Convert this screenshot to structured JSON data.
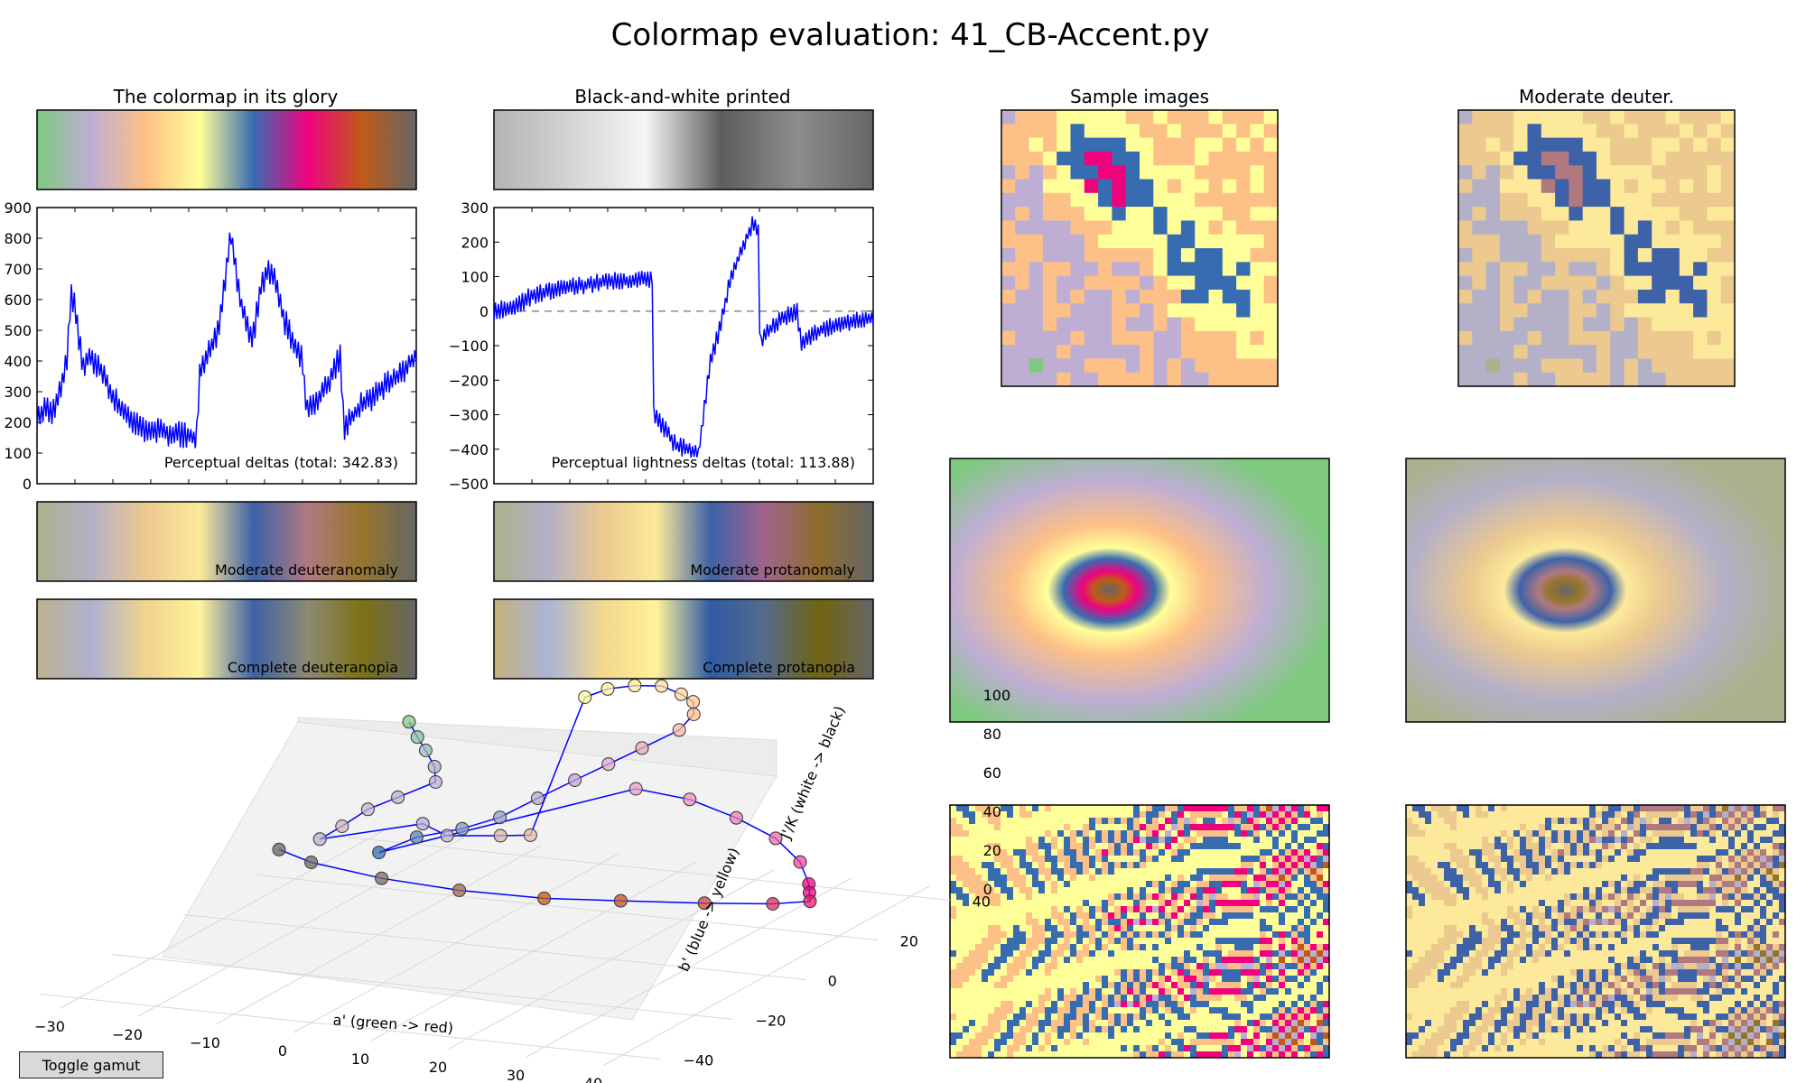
{
  "figure_title": "Colormap evaluation: 41_CB-Accent.py",
  "toggle_gamut_label": "Toggle gamut",
  "colors": {
    "line": "#0000ff",
    "accent_stops": [
      "#7fc97f",
      "#beaed4",
      "#fdc086",
      "#ffff99",
      "#386cb0",
      "#f0027f",
      "#bf5b17",
      "#666666"
    ],
    "grey_stops": [
      "#b3b3b3",
      "#d4d4d4",
      "#f5f5f5",
      "#5e5e5e",
      "#8c8c8c",
      "#666666"
    ],
    "deuteranomaly_stops": [
      "#a9b28c",
      "#b4b0c8",
      "#ecc98f",
      "#fcea9a",
      "#3e62a8",
      "#b07980",
      "#95752c",
      "#666666"
    ],
    "protanomaly_stops": [
      "#a9b28c",
      "#b4b0c8",
      "#ecc98f",
      "#fcea9a",
      "#3e62a8",
      "#a0648c",
      "#8d6c2c",
      "#666666"
    ],
    "deuteranopia_stops": [
      "#bdb38d",
      "#aeb1d0",
      "#f0d38e",
      "#fff29a",
      "#3f62a6",
      "#8c8a72",
      "#7d7114",
      "#666666"
    ],
    "protanopia_stops": [
      "#c4b27c",
      "#aab4d6",
      "#f2d78c",
      "#fff29a",
      "#2f5aa4",
      "#546b8c",
      "#6f640e",
      "#666666"
    ]
  },
  "labels": {
    "colormap_glory": "The colormap in its glory",
    "bw_printed": "Black-and-white printed",
    "sample_images": "Sample images",
    "moderate_deuter": "Moderate deuter.",
    "moderate_deuteranomaly": "Moderate deuteranomaly",
    "moderate_protanomaly": "Moderate protanomaly",
    "complete_deuteranopia": "Complete deuteranopia",
    "complete_protanopia": "Complete protanopia",
    "axis_a": "a' (green -> red)",
    "axis_b": "b' (blue -> yellow)",
    "axis_j": "J'/K (white -> black)"
  },
  "chart_data": [
    {
      "type": "line",
      "annotation": "Perceptual deltas (total: 342.83)",
      "ylim": [
        0,
        900
      ],
      "yticks": [
        0,
        100,
        200,
        300,
        400,
        500,
        600,
        700,
        800,
        900
      ],
      "xlim": [
        0,
        1
      ],
      "profile": [
        [
          0,
          200
        ],
        [
          0.02,
          250
        ],
        [
          0.04,
          230
        ],
        [
          0.06,
          300
        ],
        [
          0.08,
          420
        ],
        [
          0.09,
          620
        ],
        [
          0.1,
          580
        ],
        [
          0.12,
          380
        ],
        [
          0.14,
          420
        ],
        [
          0.16,
          380
        ],
        [
          0.18,
          350
        ],
        [
          0.2,
          280
        ],
        [
          0.24,
          220
        ],
        [
          0.28,
          180
        ],
        [
          0.33,
          170
        ],
        [
          0.38,
          160
        ],
        [
          0.42,
          150
        ],
        [
          0.43,
          380
        ],
        [
          0.46,
          440
        ],
        [
          0.48,
          500
        ],
        [
          0.5,
          700
        ],
        [
          0.51,
          820
        ],
        [
          0.53,
          640
        ],
        [
          0.55,
          520
        ],
        [
          0.57,
          480
        ],
        [
          0.59,
          640
        ],
        [
          0.61,
          700
        ],
        [
          0.63,
          660
        ],
        [
          0.65,
          540
        ],
        [
          0.67,
          480
        ],
        [
          0.7,
          400
        ],
        [
          0.71,
          250
        ],
        [
          0.73,
          260
        ],
        [
          0.77,
          330
        ],
        [
          0.8,
          420
        ],
        [
          0.81,
          180
        ],
        [
          0.85,
          250
        ],
        [
          0.9,
          300
        ],
        [
          0.95,
          350
        ],
        [
          1,
          420
        ]
      ]
    },
    {
      "type": "line",
      "annotation": "Perceptual lightness deltas (total: 113.88)",
      "ylim": [
        -500,
        300
      ],
      "yticks": [
        -500,
        -400,
        -300,
        -200,
        -100,
        0,
        100,
        200,
        300
      ],
      "xlim": [
        0,
        1
      ],
      "reference_line": 0,
      "profile": [
        [
          0,
          0
        ],
        [
          0.05,
          10
        ],
        [
          0.1,
          45
        ],
        [
          0.2,
          70
        ],
        [
          0.3,
          85
        ],
        [
          0.38,
          90
        ],
        [
          0.42,
          90
        ],
        [
          0.421,
          -300
        ],
        [
          0.45,
          -340
        ],
        [
          0.48,
          -390
        ],
        [
          0.54,
          -410
        ],
        [
          0.55,
          -320
        ],
        [
          0.57,
          -150
        ],
        [
          0.6,
          -30
        ],
        [
          0.62,
          80
        ],
        [
          0.65,
          170
        ],
        [
          0.68,
          250
        ],
        [
          0.7,
          230
        ],
        [
          0.701,
          -110
        ],
        [
          0.72,
          -60
        ],
        [
          0.76,
          -20
        ],
        [
          0.8,
          0
        ],
        [
          0.81,
          -100
        ],
        [
          0.85,
          -60
        ],
        [
          0.9,
          -40
        ],
        [
          1,
          -20
        ]
      ]
    },
    {
      "type": "scatter",
      "subtype": "3d",
      "xlabel": "a' (green -> red)",
      "ylabel": "b' (blue -> yellow)",
      "zlabel": "J'/K (white -> black)",
      "xticks": [
        -30,
        -20,
        -10,
        0,
        10,
        20,
        30,
        40
      ],
      "yticks": [
        -40,
        -20,
        0,
        20,
        40
      ],
      "zticks": [
        0,
        20,
        40,
        60,
        80,
        100
      ],
      "points": [
        [
          -20,
          30,
          75,
          "#7fc97f"
        ],
        [
          -18,
          28,
          70,
          "#8fc49a"
        ],
        [
          -16,
          26,
          66,
          "#9fbcae"
        ],
        [
          -13,
          22,
          63,
          "#aeb4c3"
        ],
        [
          -11,
          18,
          60,
          "#beaed4"
        ],
        [
          -14,
          14,
          55,
          "#c2b2cf"
        ],
        [
          -16,
          10,
          52,
          "#c8b4c8"
        ],
        [
          -17,
          5,
          48,
          "#cfb8b8"
        ],
        [
          -18,
          1,
          45,
          "#beaed4"
        ],
        [
          -8,
          8,
          50,
          "#beaed4"
        ],
        [
          -3,
          4,
          50,
          "#c4b0cc"
        ],
        [
          2,
          8,
          48,
          "#d8b8b0"
        ],
        [
          4,
          12,
          45,
          "#e6bca0"
        ],
        [
          -2,
          40,
          85,
          "#ffff99"
        ],
        [
          0,
          42,
          88,
          "#fff39a"
        ],
        [
          3,
          43,
          90,
          "#fee99a"
        ],
        [
          6,
          44,
          90,
          "#fede97"
        ],
        [
          9,
          43,
          88,
          "#fed493"
        ],
        [
          11,
          42,
          86,
          "#fdca8e"
        ],
        [
          12,
          40,
          82,
          "#fdc086"
        ],
        [
          12,
          36,
          78,
          "#f9b8a0"
        ],
        [
          10,
          30,
          74,
          "#eeb0b8"
        ],
        [
          8,
          25,
          70,
          "#dfaad0"
        ],
        [
          6,
          20,
          66,
          "#c8a6d4"
        ],
        [
          4,
          14,
          62,
          "#b4a8d0"
        ],
        [
          1,
          10,
          55,
          "#9aa4c8"
        ],
        [
          -2,
          6,
          52,
          "#7f98c0"
        ],
        [
          -6,
          2,
          50,
          "#5f84b8"
        ],
        [
          -9,
          -2,
          45,
          "#386cb0"
        ],
        [
          12,
          24,
          60,
          "#e4a2c6"
        ],
        [
          18,
          26,
          55,
          "#e892bc"
        ],
        [
          24,
          26,
          48,
          "#ec7fb2"
        ],
        [
          30,
          24,
          42,
          "#ee6aa6"
        ],
        [
          35,
          20,
          36,
          "#f04898"
        ],
        [
          38,
          16,
          30,
          "#f0027f"
        ],
        [
          39,
          14,
          28,
          "#f0027f"
        ],
        [
          40,
          12,
          26,
          "#e81a6e"
        ],
        [
          38,
          6,
          30,
          "#d8305a"
        ],
        [
          32,
          0,
          34,
          "#cc4440"
        ],
        [
          24,
          -6,
          38,
          "#c45028"
        ],
        [
          16,
          -10,
          40,
          "#bf5b17"
        ],
        [
          6,
          -12,
          42,
          "#9a6a4c"
        ],
        [
          -4,
          -12,
          44,
          "#806a5e"
        ],
        [
          -14,
          -10,
          46,
          "#6a6a66"
        ],
        [
          -20,
          -6,
          46,
          "#666666"
        ]
      ]
    }
  ]
}
